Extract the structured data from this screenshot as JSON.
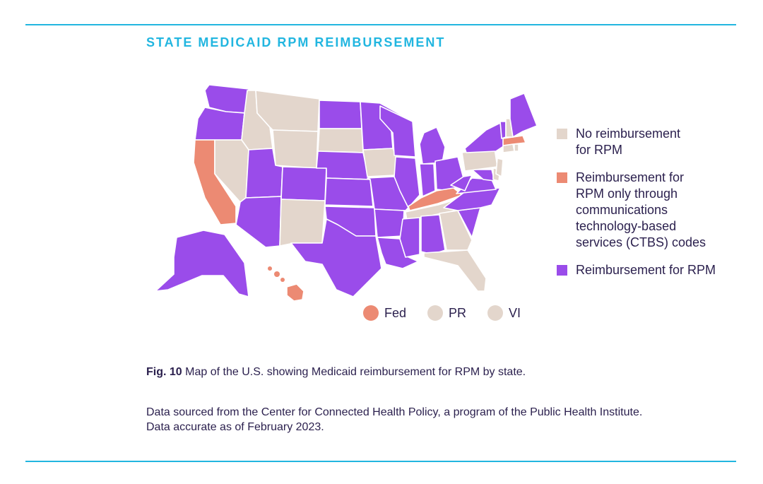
{
  "title": "STATE MEDICAID RPM REIMBURSEMENT",
  "colors": {
    "no": "#e3d6cc",
    "ctbs": "#ec8a73",
    "rpm": "#9a4cea",
    "accent": "#22b6e0",
    "text": "#2a1f4d"
  },
  "legend": [
    {
      "key": "no",
      "label": "No reimbursement\nfor RPM"
    },
    {
      "key": "ctbs",
      "label": "Reimbursement for\nRPM only through\ncommunications\ntechnology-based\nservices (CTBS) codes"
    },
    {
      "key": "rpm",
      "label": "Reimbursement for RPM"
    }
  ],
  "territories": [
    {
      "label": "Fed",
      "key": "ctbs"
    },
    {
      "label": "PR",
      "key": "no"
    },
    {
      "label": "VI",
      "key": "no"
    }
  ],
  "states": {
    "WA": "rpm",
    "OR": "rpm",
    "CA": "ctbs",
    "NV": "no",
    "ID": "no",
    "MT": "no",
    "WY": "no",
    "UT": "rpm",
    "AZ": "rpm",
    "CO": "rpm",
    "NM": "no",
    "ND": "rpm",
    "SD": "no",
    "NE": "rpm",
    "KS": "rpm",
    "OK": "rpm",
    "TX": "rpm",
    "MN": "rpm",
    "IA": "no",
    "MO": "rpm",
    "AR": "rpm",
    "LA": "rpm",
    "WI": "rpm",
    "IL": "rpm",
    "MI": "rpm",
    "IN": "rpm",
    "OH": "rpm",
    "KY": "ctbs",
    "TN": "no",
    "MS": "rpm",
    "AL": "rpm",
    "GA": "no",
    "FL": "no",
    "SC": "rpm",
    "NC": "rpm",
    "VA": "rpm",
    "WV": "rpm",
    "MD": "rpm",
    "DE": "no",
    "PA": "no",
    "NJ": "no",
    "NY": "rpm",
    "CT": "no",
    "RI": "no",
    "MA": "ctbs",
    "VT": "rpm",
    "NH": "no",
    "ME": "rpm",
    "AK": "rpm",
    "HI": "ctbs"
  },
  "caption": {
    "fig": "Fig. 10",
    "text": "Map of the U.S. showing Medicaid reimbursement for RPM by state."
  },
  "source": "Data sourced from the Center for Connected Health Policy, a program of the Public Health Institute.\nData accurate as of February 2023."
}
